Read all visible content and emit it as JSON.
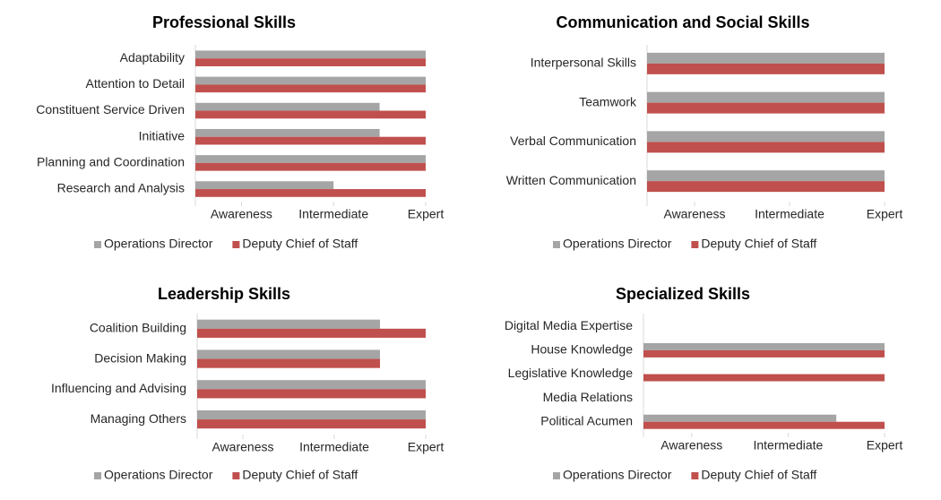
{
  "chart_data": [
    {
      "type": "bar",
      "orientation": "horizontal",
      "title": "Professional Skills",
      "categories": [
        "Adaptability",
        "Attention to Detail",
        "Constituent Service Driven",
        "Initiative",
        "Planning and Coordination",
        "Research and Analysis"
      ],
      "series": [
        {
          "name": "Operations Director",
          "color": "#a5a5a5",
          "values": [
            5,
            5,
            4,
            4,
            5,
            3
          ]
        },
        {
          "name": "Deputy Chief of Staff",
          "color": "#c0504d",
          "values": [
            5,
            5,
            5,
            5,
            5,
            5
          ]
        }
      ],
      "xlim": [
        0,
        5
      ],
      "xticks": [
        {
          "value": 1,
          "label": "Awareness"
        },
        {
          "value": 3,
          "label": "Intermediate"
        },
        {
          "value": 5,
          "label": "Expert"
        }
      ],
      "legend": "bottom"
    },
    {
      "type": "bar",
      "orientation": "horizontal",
      "title": "Communication and Social Skills",
      "categories": [
        "Interpersonal Skills",
        "Teamwork",
        "Verbal Communication",
        "Written Communication"
      ],
      "series": [
        {
          "name": "Operations Director",
          "color": "#a5a5a5",
          "values": [
            5,
            5,
            5,
            5
          ]
        },
        {
          "name": "Deputy Chief of Staff",
          "color": "#c0504d",
          "values": [
            5,
            5,
            5,
            5
          ]
        }
      ],
      "xlim": [
        0,
        5
      ],
      "xticks": [
        {
          "value": 1,
          "label": "Awareness"
        },
        {
          "value": 3,
          "label": "Intermediate"
        },
        {
          "value": 5,
          "label": "Expert"
        }
      ],
      "legend": "bottom"
    },
    {
      "type": "bar",
      "orientation": "horizontal",
      "title": "Leadership Skills",
      "categories": [
        "Coalition Building",
        "Decision Making",
        "Influencing and Advising",
        "Managing Others"
      ],
      "series": [
        {
          "name": "Operations Director",
          "color": "#a5a5a5",
          "values": [
            4,
            4,
            5,
            5
          ]
        },
        {
          "name": "Deputy Chief of Staff",
          "color": "#c0504d",
          "values": [
            5,
            4,
            5,
            5
          ]
        }
      ],
      "xlim": [
        0,
        5
      ],
      "xticks": [
        {
          "value": 1,
          "label": "Awareness"
        },
        {
          "value": 3,
          "label": "Intermediate"
        },
        {
          "value": 5,
          "label": "Expert"
        }
      ],
      "legend": "bottom"
    },
    {
      "type": "bar",
      "orientation": "horizontal",
      "title": "Specialized Skills",
      "categories": [
        "Digital Media Expertise",
        "House Knowledge",
        "Legislative Knowledge",
        "Media Relations",
        "Political Acumen"
      ],
      "series": [
        {
          "name": "Operations Director",
          "color": "#a5a5a5",
          "values": [
            null,
            5,
            null,
            null,
            4
          ]
        },
        {
          "name": "Deputy Chief of Staff",
          "color": "#c0504d",
          "values": [
            null,
            5,
            5,
            null,
            5
          ]
        }
      ],
      "xlim": [
        0,
        5
      ],
      "xticks": [
        {
          "value": 1,
          "label": "Awareness"
        },
        {
          "value": 3,
          "label": "Intermediate"
        },
        {
          "value": 5,
          "label": "Expert"
        }
      ],
      "legend": "bottom"
    }
  ]
}
